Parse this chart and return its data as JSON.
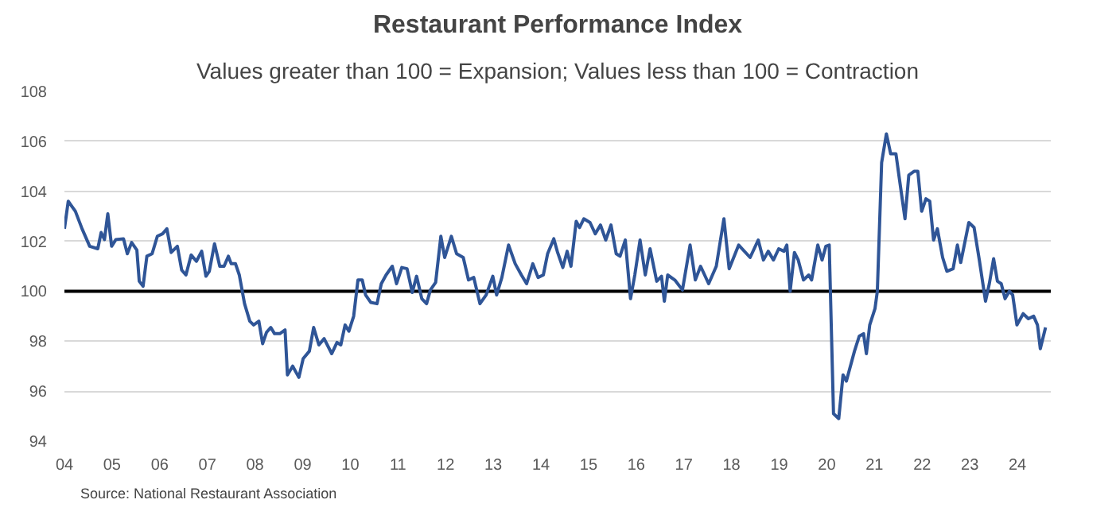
{
  "chart_data": {
    "type": "line",
    "title": "Restaurant Performance Index",
    "subtitle": "Values greater than 100 = Expansion; Values less than 100 = Contraction",
    "annotations": [
      "Source: National Restaurant Association"
    ],
    "series": [
      {
        "color": "#2f5597",
        "x": [
          2004.0,
          2004.08,
          2004.23,
          2004.37,
          2004.53,
          2004.7,
          2004.77,
          2004.84,
          2004.91,
          2004.99,
          2005.08,
          2005.24,
          2005.32,
          2005.41,
          2005.52,
          2005.57,
          2005.65,
          2005.73,
          2005.84,
          2005.95,
          2006.06,
          2006.15,
          2006.24,
          2006.37,
          2006.46,
          2006.55,
          2006.66,
          2006.77,
          2006.88,
          2006.97,
          2007.04,
          2007.15,
          2007.26,
          2007.35,
          2007.44,
          2007.5,
          2007.59,
          2007.67,
          2007.78,
          2007.89,
          2007.97,
          2008.08,
          2008.16,
          2008.24,
          2008.33,
          2008.41,
          2008.52,
          2008.63,
          2008.68,
          2008.79,
          2008.92,
          2009.01,
          2009.14,
          2009.23,
          2009.34,
          2009.45,
          2009.61,
          2009.72,
          2009.8,
          2009.89,
          2009.97,
          2010.07,
          2010.16,
          2010.25,
          2010.32,
          2010.43,
          2010.56,
          2010.65,
          2010.75,
          2010.88,
          2010.97,
          2011.08,
          2011.19,
          2011.3,
          2011.39,
          2011.5,
          2011.6,
          2011.68,
          2011.79,
          2011.9,
          2011.98,
          2012.12,
          2012.23,
          2012.37,
          2012.48,
          2012.59,
          2012.72,
          2012.85,
          2012.99,
          2013.07,
          2013.18,
          2013.32,
          2013.46,
          2013.59,
          2013.7,
          2013.83,
          2013.94,
          2014.05,
          2014.14,
          2014.27,
          2014.35,
          2014.46,
          2014.55,
          2014.63,
          2014.74,
          2014.81,
          2014.9,
          2015.03,
          2015.14,
          2015.25,
          2015.36,
          2015.47,
          2015.58,
          2015.66,
          2015.77,
          2015.88,
          2015.97,
          2016.08,
          2016.19,
          2016.29,
          2016.43,
          2016.53,
          2016.59,
          2016.66,
          2016.81,
          2016.97,
          2017.13,
          2017.24,
          2017.35,
          2017.52,
          2017.68,
          2017.84,
          2017.95,
          2018.15,
          2018.39,
          2018.56,
          2018.67,
          2018.77,
          2018.88,
          2018.99,
          2019.1,
          2019.16,
          2019.23,
          2019.32,
          2019.4,
          2019.51,
          2019.62,
          2019.68,
          2019.81,
          2019.9,
          2019.98,
          2020.05,
          2020.14,
          2020.25,
          2020.34,
          2020.41,
          2020.58,
          2020.68,
          2020.77,
          2020.83,
          2020.9,
          2021.01,
          2021.06,
          2021.15,
          2021.25,
          2021.34,
          2021.45,
          2021.53,
          2021.64,
          2021.72,
          2021.83,
          2021.91,
          2021.99,
          2022.08,
          2022.16,
          2022.24,
          2022.32,
          2022.43,
          2022.52,
          2022.65,
          2022.74,
          2022.81,
          2022.98,
          2023.09,
          2023.2,
          2023.33,
          2023.41,
          2023.5,
          2023.58,
          2023.66,
          2023.74,
          2023.83,
          2023.9,
          2023.99,
          2024.12,
          2024.23,
          2024.34,
          2024.42,
          2024.48,
          2024.59
        ],
        "values": [
          102.5,
          103.6,
          103.2,
          102.5,
          101.8,
          101.7,
          102.35,
          102.07,
          103.1,
          101.8,
          102.07,
          102.1,
          101.5,
          101.95,
          101.65,
          100.4,
          100.2,
          101.4,
          101.5,
          102.2,
          102.3,
          102.5,
          101.55,
          101.8,
          100.85,
          100.65,
          101.45,
          101.2,
          101.6,
          100.6,
          100.8,
          101.9,
          101.0,
          101.0,
          101.4,
          101.1,
          101.1,
          100.65,
          99.5,
          98.8,
          98.65,
          98.8,
          97.9,
          98.35,
          98.55,
          98.3,
          98.3,
          98.45,
          96.65,
          97.0,
          96.55,
          97.3,
          97.6,
          98.55,
          97.85,
          98.1,
          97.5,
          97.95,
          97.85,
          98.65,
          98.4,
          99.0,
          100.45,
          100.45,
          99.85,
          99.55,
          99.5,
          100.3,
          100.65,
          101.0,
          100.3,
          100.95,
          100.9,
          99.95,
          100.6,
          99.7,
          99.5,
          100.05,
          100.35,
          102.2,
          101.35,
          102.2,
          101.5,
          101.35,
          100.45,
          100.55,
          99.5,
          99.85,
          100.6,
          99.85,
          100.55,
          101.85,
          101.1,
          100.65,
          100.3,
          101.1,
          100.55,
          100.65,
          101.5,
          102.1,
          101.55,
          100.95,
          101.6,
          101.0,
          102.8,
          102.55,
          102.9,
          102.75,
          102.3,
          102.65,
          102.05,
          102.65,
          101.5,
          101.4,
          102.05,
          99.7,
          100.65,
          102.05,
          100.65,
          101.7,
          100.4,
          100.6,
          99.6,
          100.65,
          100.45,
          100.05,
          101.85,
          100.45,
          101.0,
          100.3,
          101.0,
          102.9,
          100.9,
          101.85,
          101.35,
          102.05,
          101.25,
          101.6,
          101.25,
          101.7,
          101.6,
          101.85,
          100.0,
          101.55,
          101.25,
          100.45,
          100.65,
          100.45,
          101.85,
          101.25,
          101.8,
          101.85,
          95.1,
          94.9,
          96.65,
          96.4,
          97.6,
          98.2,
          98.3,
          97.5,
          98.65,
          99.3,
          100.0,
          105.15,
          106.3,
          105.5,
          105.5,
          104.4,
          102.9,
          104.65,
          104.8,
          104.8,
          103.2,
          103.7,
          103.6,
          102.05,
          102.5,
          101.35,
          100.8,
          100.9,
          101.85,
          101.15,
          102.75,
          102.55,
          101.25,
          99.6,
          100.3,
          101.3,
          100.4,
          100.3,
          99.7,
          100.0,
          99.85,
          98.65,
          99.1,
          98.9,
          99.0,
          98.65,
          97.7,
          98.55
        ]
      }
    ],
    "xlim": [
      2004,
      2024.7
    ],
    "xticks": [
      {
        "value": 2004,
        "label": "04"
      },
      {
        "value": 2005,
        "label": "05"
      },
      {
        "value": 2006,
        "label": "06"
      },
      {
        "value": 2007,
        "label": "07"
      },
      {
        "value": 2008,
        "label": "08"
      },
      {
        "value": 2009,
        "label": "09"
      },
      {
        "value": 2010,
        "label": "10"
      },
      {
        "value": 2011,
        "label": "11"
      },
      {
        "value": 2012,
        "label": "12"
      },
      {
        "value": 2013,
        "label": "13"
      },
      {
        "value": 2014,
        "label": "14"
      },
      {
        "value": 2015,
        "label": "15"
      },
      {
        "value": 2016,
        "label": "16"
      },
      {
        "value": 2017,
        "label": "17"
      },
      {
        "value": 2018,
        "label": "18"
      },
      {
        "value": 2019,
        "label": "19"
      },
      {
        "value": 2020,
        "label": "20"
      },
      {
        "value": 2021,
        "label": "21"
      },
      {
        "value": 2022,
        "label": "22"
      },
      {
        "value": 2023,
        "label": "23"
      },
      {
        "value": 2024,
        "label": "24"
      }
    ],
    "ylim": [
      94,
      108
    ],
    "yticks": [
      94,
      96,
      98,
      100,
      102,
      104,
      106,
      108
    ],
    "ref_lines": [
      {
        "axis": "y",
        "value": 100,
        "color": "#000000"
      }
    ],
    "grid": "y",
    "line_style": "solid"
  }
}
